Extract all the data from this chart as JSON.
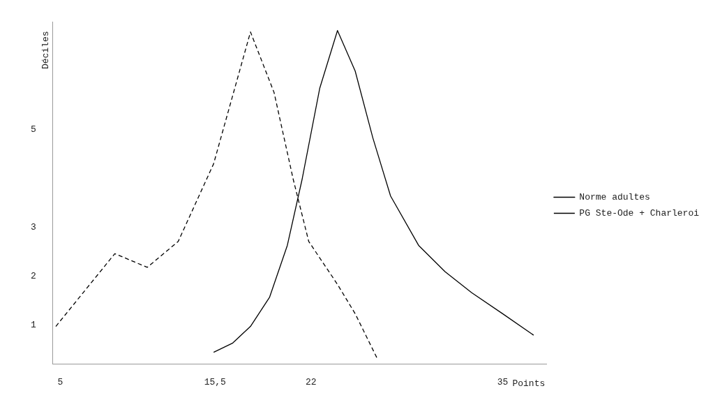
{
  "chart_data": {
    "type": "line",
    "xlabel": "Points",
    "ylabel": "Déciles",
    "xlim": [
      4.5,
      38
    ],
    "xticks": [
      5,
      {
        "value": 15.5,
        "label": "15,5"
      },
      22,
      35
    ],
    "ylim": [
      0.2,
      7.2
    ],
    "yticks": [
      1,
      2,
      3,
      5
    ],
    "grid": false,
    "legend": "right",
    "marker": "none",
    "series": [
      {
        "name": "Norme adultes",
        "color": "#000000",
        "line_style": "solid",
        "x": [
          15.4,
          16.7,
          17.9,
          19.2,
          20.4,
          21.4,
          22.6,
          23.8,
          25.0,
          26.2,
          27.4,
          29.3,
          31.1,
          32.9,
          35.0,
          37.1
        ],
        "values": [
          0.44,
          0.63,
          0.97,
          1.57,
          2.63,
          3.98,
          5.85,
          7.03,
          6.2,
          4.83,
          3.64,
          2.63,
          2.09,
          1.66,
          1.23,
          0.79
        ]
      },
      {
        "name": "PG Ste-Ode + Charleroi",
        "color": "#000000",
        "line_style": "dashed",
        "x": [
          4.7,
          8.7,
          10.9,
          13.0,
          15.4,
          17.9,
          19.5,
          20.8,
          21.85,
          23.8,
          25.0,
          26.5
        ],
        "values": [
          0.97,
          2.46,
          2.18,
          2.71,
          4.3,
          7.0,
          5.76,
          3.98,
          2.71,
          1.83,
          1.23,
          0.31
        ]
      }
    ]
  }
}
